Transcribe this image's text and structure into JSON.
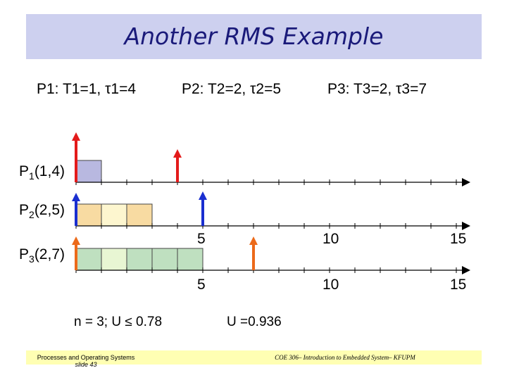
{
  "title": "Another RMS Example",
  "params": {
    "p1": "P1: T1=1, τ1=4",
    "p2": "P2: T2=2, τ2=5",
    "p3": "P3: T3=2, τ3=7"
  },
  "tasks": [
    {
      "prefix": "P",
      "sub": "1",
      "args": "(1,4)"
    },
    {
      "prefix": "P",
      "sub": "2",
      "args": "(2,5)"
    },
    {
      "prefix": "P",
      "sub": "3",
      "args": "(2,7)"
    }
  ],
  "axis_labels": [
    "5",
    "10",
    "15"
  ],
  "formula_left": "n = 3;  U ≤ 0.78",
  "formula_right": "U =0.936",
  "footer": {
    "left_line1": "Processes and Operating Systems",
    "left_line2": "slide 43",
    "right": "COE 306– Introduction to Embedded System– KFUPM"
  },
  "colors": {
    "title_bg": "#cdd0ef",
    "p1_block": "#b8b8e0",
    "p2_block": "#f8dba2",
    "p2_block_light": "#fdf6cf",
    "p3_block": "#bfe0c0",
    "p3_block_light": "#e8f6d3",
    "arrow_p1": "#e31a1a",
    "arrow_p2": "#1a2fd0",
    "arrow_p3": "#ec6a1a",
    "footer_bg": "#ffffb3"
  }
}
